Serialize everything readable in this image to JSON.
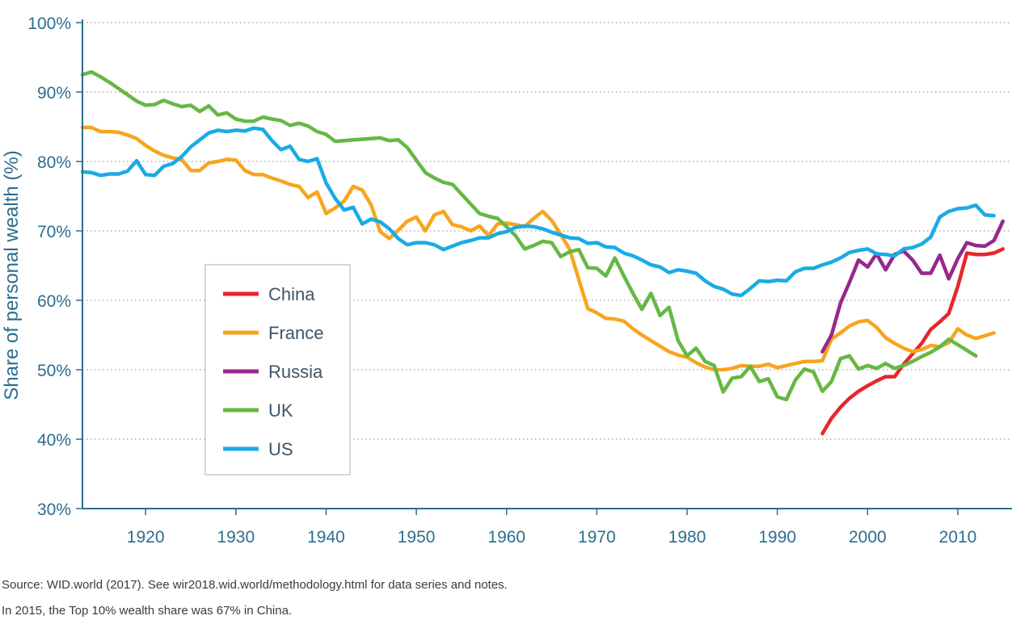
{
  "chart_data": {
    "type": "line",
    "ylabel": "Share of personal wealth (%)",
    "xlabel": "",
    "xlim": [
      1913,
      2016
    ],
    "ylim": [
      30,
      100
    ],
    "x_ticks": [
      1920,
      1930,
      1940,
      1950,
      1960,
      1970,
      1980,
      1990,
      2000,
      2010
    ],
    "x_tick_labels": [
      "1920",
      "1930",
      "1940",
      "1950",
      "1960",
      "1970",
      "1980",
      "1990",
      "2000",
      "2010"
    ],
    "y_ticks": [
      30,
      40,
      50,
      60,
      70,
      80,
      90,
      100
    ],
    "y_tick_labels": [
      "30%",
      "40%",
      "50%",
      "60%",
      "70%",
      "80%",
      "90%",
      "100%"
    ],
    "grid": "horizontal dotted",
    "legend_position": "left-center",
    "series": [
      {
        "name": "China",
        "color": "#e8262b",
        "x": [
          1995,
          1996,
          1997,
          1998,
          1999,
          2000,
          2001,
          2002,
          2003,
          2004,
          2005,
          2006,
          2007,
          2008,
          2009,
          2010,
          2011,
          2012,
          2013,
          2014,
          2015
        ],
        "y": [
          40.8,
          43.0,
          44.6,
          45.9,
          46.9,
          47.7,
          48.4,
          49.0,
          49.0,
          50.8,
          52.3,
          53.8,
          55.8,
          56.9,
          58.1,
          62.0,
          66.8,
          66.6,
          66.6,
          66.8,
          67.4
        ]
      },
      {
        "name": "France",
        "color": "#f8a51d",
        "x": [
          1913,
          1914,
          1915,
          1916,
          1917,
          1918,
          1919,
          1920,
          1921,
          1922,
          1923,
          1924,
          1925,
          1926,
          1927,
          1928,
          1929,
          1930,
          1931,
          1932,
          1933,
          1934,
          1935,
          1936,
          1937,
          1938,
          1939,
          1940,
          1941,
          1942,
          1943,
          1944,
          1945,
          1946,
          1947,
          1948,
          1949,
          1950,
          1951,
          1952,
          1953,
          1954,
          1955,
          1956,
          1957,
          1958,
          1959,
          1960,
          1961,
          1962,
          1963,
          1964,
          1965,
          1966,
          1967,
          1968,
          1969,
          1970,
          1971,
          1972,
          1973,
          1974,
          1975,
          1976,
          1977,
          1978,
          1979,
          1980,
          1981,
          1982,
          1983,
          1984,
          1985,
          1986,
          1987,
          1988,
          1989,
          1990,
          1991,
          1992,
          1993,
          1994,
          1995,
          1996,
          1997,
          1998,
          1999,
          2000,
          2001,
          2002,
          2003,
          2004,
          2005,
          2006,
          2007,
          2008,
          2009,
          2010,
          2011,
          2012,
          2013,
          2014
        ],
        "y": [
          84.9,
          84.9,
          84.3,
          84.3,
          84.2,
          83.8,
          83.3,
          82.3,
          81.5,
          80.9,
          80.5,
          80.3,
          78.7,
          78.7,
          79.8,
          80.0,
          80.3,
          80.2,
          78.7,
          78.1,
          78.1,
          77.6,
          77.2,
          76.7,
          76.4,
          74.8,
          75.6,
          72.5,
          73.3,
          74.3,
          76.4,
          75.9,
          73.7,
          69.9,
          68.9,
          70.1,
          71.4,
          72.0,
          70.0,
          72.3,
          72.8,
          70.9,
          70.6,
          70.0,
          70.7,
          69.3,
          71.0,
          71.1,
          70.9,
          70.6,
          71.8,
          72.8,
          71.5,
          69.5,
          67.3,
          63.0,
          58.8,
          58.2,
          57.4,
          57.3,
          57.0,
          55.9,
          55.0,
          54.2,
          53.4,
          52.6,
          52.1,
          51.8,
          51.0,
          50.4,
          50.0,
          50.0,
          50.2,
          50.6,
          50.5,
          50.5,
          50.8,
          50.3,
          50.6,
          50.9,
          51.2,
          51.2,
          51.3,
          54.4,
          55.3,
          56.3,
          56.9,
          57.1,
          56.1,
          54.6,
          53.8,
          53.1,
          52.6,
          52.9,
          53.5,
          53.3,
          53.9,
          55.9,
          55.0,
          54.5,
          54.9,
          55.3
        ]
      },
      {
        "name": "Russia",
        "color": "#98278d",
        "x": [
          1995,
          1996,
          1997,
          1998,
          1999,
          2000,
          2001,
          2002,
          2003,
          2004,
          2005,
          2006,
          2007,
          2008,
          2009,
          2010,
          2011,
          2012,
          2013,
          2014,
          2015
        ],
        "y": [
          52.6,
          55.0,
          59.6,
          62.6,
          65.8,
          64.8,
          66.7,
          64.4,
          66.6,
          67.1,
          65.8,
          63.9,
          63.9,
          66.5,
          63.1,
          66.0,
          68.3,
          67.9,
          67.8,
          68.6,
          71.4
        ]
      },
      {
        "name": "UK",
        "color": "#65b844",
        "x": [
          1913,
          1914,
          1915,
          1916,
          1917,
          1918,
          1919,
          1920,
          1921,
          1922,
          1923,
          1924,
          1925,
          1926,
          1927,
          1928,
          1929,
          1930,
          1931,
          1932,
          1933,
          1934,
          1935,
          1936,
          1937,
          1938,
          1939,
          1940,
          1941,
          1942,
          1943,
          1944,
          1945,
          1946,
          1947,
          1948,
          1949,
          1950,
          1951,
          1952,
          1953,
          1954,
          1955,
          1956,
          1957,
          1958,
          1959,
          1960,
          1961,
          1962,
          1963,
          1964,
          1965,
          1966,
          1967,
          1968,
          1969,
          1970,
          1971,
          1972,
          1973,
          1974,
          1975,
          1976,
          1977,
          1978,
          1979,
          1980,
          1981,
          1982,
          1983,
          1984,
          1985,
          1986,
          1987,
          1988,
          1989,
          1990,
          1991,
          1992,
          1993,
          1994,
          1995,
          1996,
          1997,
          1998,
          1999,
          2000,
          2001,
          2002,
          2003,
          2004,
          2005,
          2006,
          2007,
          2008,
          2009,
          2010,
          2011,
          2012
        ],
        "y": [
          92.5,
          92.9,
          92.2,
          91.4,
          90.5,
          89.6,
          88.7,
          88.1,
          88.2,
          88.8,
          88.3,
          87.9,
          88.1,
          87.2,
          88.0,
          86.7,
          87.0,
          86.1,
          85.8,
          85.8,
          86.4,
          86.1,
          85.9,
          85.2,
          85.5,
          85.1,
          84.3,
          83.9,
          82.9,
          83.0,
          83.1,
          83.2,
          83.3,
          83.4,
          83.0,
          83.1,
          82.0,
          80.2,
          78.4,
          77.6,
          77.0,
          76.7,
          75.3,
          73.9,
          72.5,
          72.1,
          71.8,
          70.6,
          69.3,
          67.4,
          67.9,
          68.5,
          68.3,
          66.3,
          67.0,
          67.3,
          64.7,
          64.6,
          63.5,
          66.1,
          63.5,
          61.0,
          58.7,
          61.0,
          57.8,
          59.0,
          54.2,
          52.0,
          53.1,
          51.2,
          50.6,
          46.8,
          48.8,
          49.0,
          50.5,
          48.3,
          48.7,
          46.1,
          45.7,
          48.5,
          50.1,
          49.7,
          46.9,
          48.3,
          51.6,
          52.0,
          50.1,
          50.6,
          50.2,
          50.9,
          50.2,
          50.6,
          51.2,
          51.9,
          52.5,
          53.3,
          54.4,
          53.6,
          52.8,
          52.0
        ]
      },
      {
        "name": "US",
        "color": "#1aabe6",
        "x": [
          1913,
          1914,
          1915,
          1916,
          1917,
          1918,
          1919,
          1920,
          1921,
          1922,
          1923,
          1924,
          1925,
          1926,
          1927,
          1928,
          1929,
          1930,
          1931,
          1932,
          1933,
          1934,
          1935,
          1936,
          1937,
          1938,
          1939,
          1940,
          1941,
          1942,
          1943,
          1944,
          1945,
          1946,
          1947,
          1948,
          1949,
          1950,
          1951,
          1952,
          1953,
          1954,
          1955,
          1956,
          1957,
          1958,
          1959,
          1960,
          1961,
          1962,
          1963,
          1964,
          1965,
          1966,
          1967,
          1968,
          1969,
          1970,
          1971,
          1972,
          1973,
          1974,
          1975,
          1976,
          1977,
          1978,
          1979,
          1980,
          1981,
          1982,
          1983,
          1984,
          1985,
          1986,
          1987,
          1988,
          1989,
          1990,
          1991,
          1992,
          1993,
          1994,
          1995,
          1996,
          1997,
          1998,
          1999,
          2000,
          2001,
          2002,
          2003,
          2004,
          2005,
          2006,
          2007,
          2008,
          2009,
          2010,
          2011,
          2012,
          2013,
          2014
        ],
        "y": [
          78.5,
          78.4,
          78.0,
          78.2,
          78.2,
          78.6,
          80.1,
          78.1,
          78.0,
          79.3,
          79.7,
          80.7,
          82.1,
          83.1,
          84.1,
          84.5,
          84.3,
          84.5,
          84.4,
          84.8,
          84.6,
          83.0,
          81.7,
          82.2,
          80.3,
          80.0,
          80.4,
          76.9,
          74.7,
          73.0,
          73.4,
          71.0,
          71.7,
          71.3,
          70.3,
          68.9,
          68.0,
          68.3,
          68.3,
          68.0,
          67.3,
          67.8,
          68.3,
          68.6,
          69.0,
          69.0,
          69.6,
          69.9,
          70.5,
          70.7,
          70.6,
          70.3,
          69.8,
          69.4,
          69.0,
          68.9,
          68.2,
          68.3,
          67.7,
          67.6,
          66.8,
          66.4,
          65.8,
          65.1,
          64.8,
          64.0,
          64.4,
          64.2,
          63.9,
          62.8,
          62.0,
          61.6,
          60.9,
          60.7,
          61.7,
          62.8,
          62.7,
          62.9,
          62.8,
          64.1,
          64.6,
          64.6,
          65.1,
          65.5,
          66.1,
          66.9,
          67.2,
          67.4,
          66.7,
          66.6,
          66.4,
          67.4,
          67.6,
          68.1,
          69.1,
          72.0,
          72.8,
          73.2,
          73.3,
          73.7,
          72.3,
          72.2
        ]
      }
    ]
  },
  "notes": {
    "source": "Source: WID.world (2017). See wir2018.wid.world/methodology.html for data series and notes.",
    "caption": "In 2015, the Top 10% wealth share was 67% in China."
  }
}
